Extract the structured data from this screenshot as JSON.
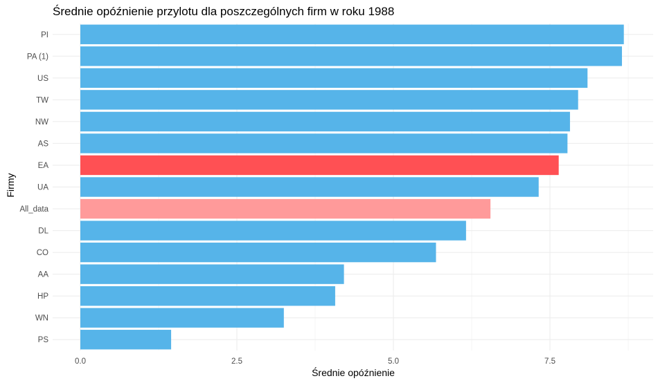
{
  "chart_data": {
    "type": "bar",
    "orientation": "horizontal",
    "title": "Średnie opóźnienie przylotu dla poszczególnych firm w roku 1988",
    "xlabel": "Średnie opóźnienie",
    "ylabel": "Firmy",
    "xlim": [
      0,
      8.6
    ],
    "xticks": [
      0,
      2.5,
      5,
      7.5
    ],
    "xtick_labels": [
      "0.0",
      "2.5",
      "5.0",
      "7.5"
    ],
    "grid": true,
    "legend": "none",
    "categories": [
      "PI",
      "PA (1)",
      "US",
      "TW",
      "NW",
      "AS",
      "EA",
      "UA",
      "All_data",
      "DL",
      "CO",
      "AA",
      "HP",
      "WN",
      "PS"
    ],
    "values": [
      8.68,
      8.65,
      8.1,
      7.95,
      7.82,
      7.78,
      7.64,
      7.32,
      6.55,
      6.16,
      5.68,
      4.21,
      4.07,
      3.25,
      1.45
    ],
    "colors": [
      "#56B4E9",
      "#56B4E9",
      "#56B4E9",
      "#56B4E9",
      "#56B4E9",
      "#56B4E9",
      "#FF5054",
      "#56B4E9",
      "#FF9A9A",
      "#56B4E9",
      "#56B4E9",
      "#56B4E9",
      "#56B4E9",
      "#56B4E9",
      "#56B4E9"
    ]
  }
}
